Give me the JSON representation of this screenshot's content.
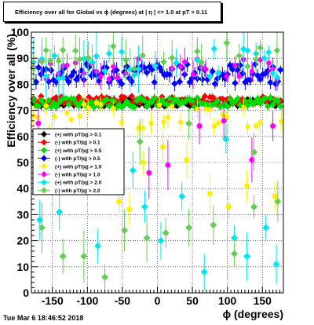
{
  "chart_data": {
    "type": "scatter",
    "title": "Efficiency over all for Global vs ϕ (degrees) at | η | <= 1.0 at pT > 0.11",
    "xlabel": "ϕ (degrees)",
    "ylabel": "Efficiency over all (%)",
    "xlim": [
      -180,
      180
    ],
    "ylim": [
      0,
      100
    ],
    "x_ticks": [
      "-150",
      "-100",
      "-50",
      "0",
      "50",
      "100",
      "150"
    ],
    "y_ticks": [
      "0",
      "10",
      "20",
      "30",
      "40",
      "50",
      "60",
      "70",
      "80",
      "90",
      "100"
    ],
    "grid": true,
    "legend_position": "left-middle",
    "series": [
      {
        "name": "(+) with pT/|q| > 0.1",
        "color": "#000000",
        "marker": "diamond",
        "mean": 73,
        "spread": 1.5,
        "err": 1.5
      },
      {
        "name": "(-) with pT/|q| > 0.1",
        "color": "#ff0000",
        "marker": "diamond",
        "mean": 74,
        "spread": 1.5,
        "err": 1.5
      },
      {
        "name": "(+) with pT/|q| > 0.5",
        "color": "#00dd00",
        "marker": "diamond",
        "mean": 73,
        "spread": 1.8,
        "err": 1.8
      },
      {
        "name": "(-) with pT/|q| > 0.5",
        "color": "#0000ff",
        "marker": "diamond",
        "mean": 84,
        "spread": 4,
        "err": 3
      },
      {
        "name": "(+) with pT/|q| > 1.0",
        "color": "#ffee00",
        "marker": "circle",
        "mean": 68,
        "spread": 5,
        "err": 3
      },
      {
        "name": "(-) with pT/|q| > 1.0",
        "color": "#ff00ff",
        "marker": "circle",
        "mean": 86,
        "spread": 4,
        "err": 4
      },
      {
        "name": "(+) with pT/|q| > 2.0",
        "color": "#00e5ee",
        "marker": "diamond",
        "mean": 88,
        "spread": 6,
        "err": 7
      },
      {
        "name": "(-) with pT/|q| > 2.0",
        "color": "#66cc55",
        "marker": "diamond",
        "mean": 91,
        "spread": 5,
        "err": 6
      }
    ],
    "sparse_points": [
      {
        "series": 4,
        "x": -155,
        "y": 55
      },
      {
        "series": 4,
        "x": -120,
        "y": 50
      },
      {
        "series": 4,
        "x": -85,
        "y": 53
      },
      {
        "series": 4,
        "x": -55,
        "y": 35
      },
      {
        "series": 4,
        "x": -40,
        "y": 32
      },
      {
        "series": 4,
        "x": -20,
        "y": 50
      },
      {
        "series": 4,
        "x": 8,
        "y": 56
      },
      {
        "series": 4,
        "x": 42,
        "y": 51
      },
      {
        "series": 4,
        "x": 75,
        "y": 38
      },
      {
        "series": 4,
        "x": 102,
        "y": 33
      },
      {
        "series": 4,
        "x": 128,
        "y": 41
      },
      {
        "series": 4,
        "x": 168,
        "y": 37
      },
      {
        "series": 5,
        "x": -170,
        "y": 65
      },
      {
        "series": 5,
        "x": -130,
        "y": 57
      },
      {
        "series": 5,
        "x": -95,
        "y": 50
      },
      {
        "series": 5,
        "x": -60,
        "y": 45
      },
      {
        "series": 5,
        "x": -12,
        "y": 46
      },
      {
        "series": 5,
        "x": 15,
        "y": 49
      },
      {
        "series": 5,
        "x": 60,
        "y": 64
      },
      {
        "series": 5,
        "x": 95,
        "y": 66
      },
      {
        "series": 5,
        "x": 135,
        "y": 51
      },
      {
        "series": 5,
        "x": 165,
        "y": 64
      },
      {
        "series": 6,
        "x": -168,
        "y": 28
      },
      {
        "series": 6,
        "x": -140,
        "y": 31
      },
      {
        "series": 6,
        "x": -110,
        "y": 45
      },
      {
        "series": 6,
        "x": -85,
        "y": 18
      },
      {
        "series": 6,
        "x": -35,
        "y": 47
      },
      {
        "series": 6,
        "x": -18,
        "y": 33
      },
      {
        "series": 6,
        "x": 5,
        "y": 20
      },
      {
        "series": 6,
        "x": 35,
        "y": 37
      },
      {
        "series": 6,
        "x": 67,
        "y": 8
      },
      {
        "series": 6,
        "x": 98,
        "y": 59
      },
      {
        "series": 6,
        "x": 110,
        "y": 21
      },
      {
        "series": 6,
        "x": 128,
        "y": 14
      },
      {
        "series": 6,
        "x": 155,
        "y": 25
      },
      {
        "series": 6,
        "x": 170,
        "y": 11
      },
      {
        "series": 7,
        "x": -165,
        "y": 25
      },
      {
        "series": 7,
        "x": -135,
        "y": 14
      },
      {
        "series": 7,
        "x": -105,
        "y": 14
      },
      {
        "series": 7,
        "x": -75,
        "y": 6
      },
      {
        "series": 7,
        "x": -47,
        "y": 24
      },
      {
        "series": 7,
        "x": -25,
        "y": 58
      },
      {
        "series": 7,
        "x": -15,
        "y": 21
      },
      {
        "series": 7,
        "x": 12,
        "y": 23
      },
      {
        "series": 7,
        "x": 45,
        "y": 65
      },
      {
        "series": 7,
        "x": 45,
        "y": 25
      },
      {
        "series": 7,
        "x": 80,
        "y": 26
      },
      {
        "series": 7,
        "x": 110,
        "y": 15
      },
      {
        "series": 7,
        "x": 138,
        "y": 54
      },
      {
        "series": 7,
        "x": 138,
        "y": 33
      },
      {
        "series": 7,
        "x": 172,
        "y": 35
      }
    ]
  },
  "timestamp": "Tue Mar  6 18:46:52 2018"
}
